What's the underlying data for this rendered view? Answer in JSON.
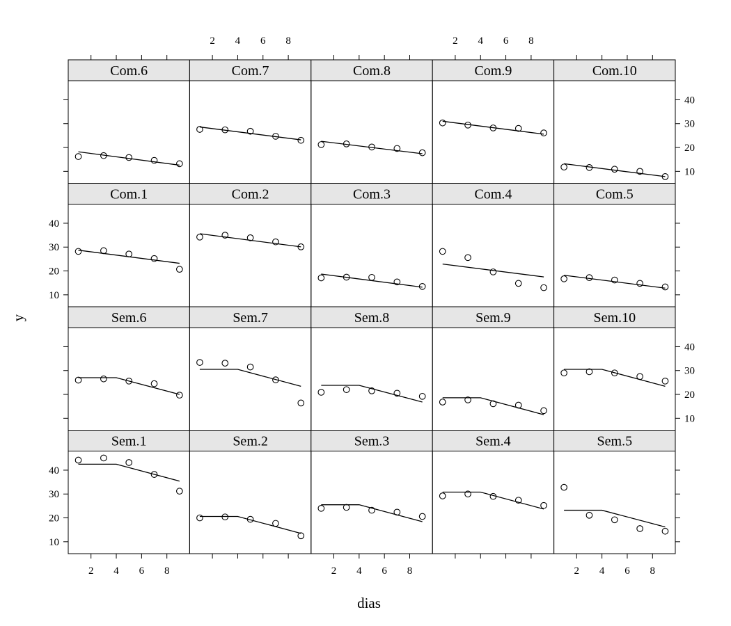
{
  "chart_data": {
    "type": "scatter",
    "xlabel": "dias",
    "ylabel": "y",
    "xlim": [
      0.2,
      9.8
    ],
    "ylim": [
      5,
      48
    ],
    "x_ticks": [
      2,
      4,
      6,
      8
    ],
    "y_ticks": [
      10,
      20,
      30,
      40
    ],
    "x": [
      1,
      3,
      5,
      7,
      9
    ],
    "panels": [
      {
        "name": "Com.6",
        "points": [
          16.2,
          16.6,
          15.8,
          14.6,
          13.2
        ],
        "fit": [
          [
            1,
            18.2
          ],
          [
            9,
            12.6
          ]
        ]
      },
      {
        "name": "Com.7",
        "points": [
          27.6,
          27.4,
          26.8,
          24.7,
          23.0
        ],
        "fit": [
          [
            1,
            28.6
          ],
          [
            9,
            23.2
          ]
        ]
      },
      {
        "name": "Com.8",
        "points": [
          21.2,
          21.5,
          20.2,
          19.6,
          17.8
        ],
        "fit": [
          [
            1,
            22.6
          ],
          [
            9,
            17.4
          ]
        ]
      },
      {
        "name": "Com.9",
        "points": [
          30.3,
          29.4,
          28.2,
          28.0,
          26.1
        ],
        "fit": [
          [
            1,
            31.0
          ],
          [
            9,
            25.6
          ]
        ]
      },
      {
        "name": "Com.10",
        "points": [
          11.8,
          11.6,
          10.9,
          10.0,
          7.8
        ],
        "fit": [
          [
            1,
            13.2
          ],
          [
            9,
            7.8
          ]
        ]
      },
      {
        "name": "Com.1",
        "points": [
          28.2,
          28.5,
          27.1,
          25.2,
          20.7
        ],
        "fit": [
          [
            1,
            28.7
          ],
          [
            9,
            23.2
          ]
        ]
      },
      {
        "name": "Com.2",
        "points": [
          34.2,
          35.0,
          33.9,
          32.2,
          30.1
        ],
        "fit": [
          [
            1,
            35.6
          ],
          [
            9,
            30.1
          ]
        ]
      },
      {
        "name": "Com.3",
        "points": [
          17.1,
          17.4,
          17.3,
          15.4,
          13.5
        ],
        "fit": [
          [
            1,
            18.7
          ],
          [
            9,
            13.2
          ]
        ]
      },
      {
        "name": "Com.4",
        "points": [
          28.2,
          25.6,
          19.6,
          14.8,
          13.0
        ],
        "fit": [
          [
            1,
            22.9
          ],
          [
            9,
            17.5
          ]
        ]
      },
      {
        "name": "Com.5",
        "points": [
          16.7,
          17.2,
          16.2,
          14.8,
          13.3
        ],
        "fit": [
          [
            1,
            18.2
          ],
          [
            9,
            12.8
          ]
        ]
      },
      {
        "name": "Sem.6",
        "points": [
          26.0,
          26.5,
          25.6,
          24.5,
          19.7
        ],
        "fit": [
          [
            1,
            27.0
          ],
          [
            4,
            27.0
          ],
          [
            9,
            20.0
          ]
        ]
      },
      {
        "name": "Sem.7",
        "points": [
          33.4,
          33.1,
          31.5,
          26.1,
          16.4
        ],
        "fit": [
          [
            1,
            30.5
          ],
          [
            4,
            30.5
          ],
          [
            9,
            23.4
          ]
        ]
      },
      {
        "name": "Sem.8",
        "points": [
          20.9,
          22.0,
          21.5,
          20.5,
          19.2
        ],
        "fit": [
          [
            1,
            23.8
          ],
          [
            4,
            23.8
          ],
          [
            9,
            16.8
          ]
        ]
      },
      {
        "name": "Sem.9",
        "points": [
          16.8,
          17.7,
          16.1,
          15.5,
          13.2
        ],
        "fit": [
          [
            1,
            18.6
          ],
          [
            4,
            18.6
          ],
          [
            9,
            11.5
          ]
        ]
      },
      {
        "name": "Sem.10",
        "points": [
          29.0,
          29.5,
          29.0,
          27.5,
          25.6
        ],
        "fit": [
          [
            1,
            30.5
          ],
          [
            4,
            30.5
          ],
          [
            9,
            23.4
          ]
        ]
      },
      {
        "name": "Sem.1",
        "points": [
          44.2,
          45.1,
          43.2,
          38.2,
          31.2
        ],
        "fit": [
          [
            1,
            42.5
          ],
          [
            4,
            42.5
          ],
          [
            9,
            35.4
          ]
        ]
      },
      {
        "name": "Sem.2",
        "points": [
          20.0,
          20.4,
          19.4,
          17.7,
          12.5
        ],
        "fit": [
          [
            1,
            20.6
          ],
          [
            4,
            20.6
          ],
          [
            9,
            13.5
          ]
        ]
      },
      {
        "name": "Sem.3",
        "points": [
          24.0,
          24.4,
          23.2,
          22.4,
          20.6
        ],
        "fit": [
          [
            1,
            25.5
          ],
          [
            4,
            25.5
          ],
          [
            9,
            18.4
          ]
        ]
      },
      {
        "name": "Sem.4",
        "points": [
          29.2,
          30.0,
          29.0,
          27.4,
          25.2
        ],
        "fit": [
          [
            1,
            30.8
          ],
          [
            4,
            30.8
          ],
          [
            9,
            23.7
          ]
        ]
      },
      {
        "name": "Sem.5",
        "points": [
          32.8,
          21.1,
          19.2,
          15.5,
          14.4
        ],
        "fit": [
          [
            1,
            23.2
          ],
          [
            4,
            23.2
          ],
          [
            9,
            16.2
          ]
        ]
      }
    ]
  }
}
